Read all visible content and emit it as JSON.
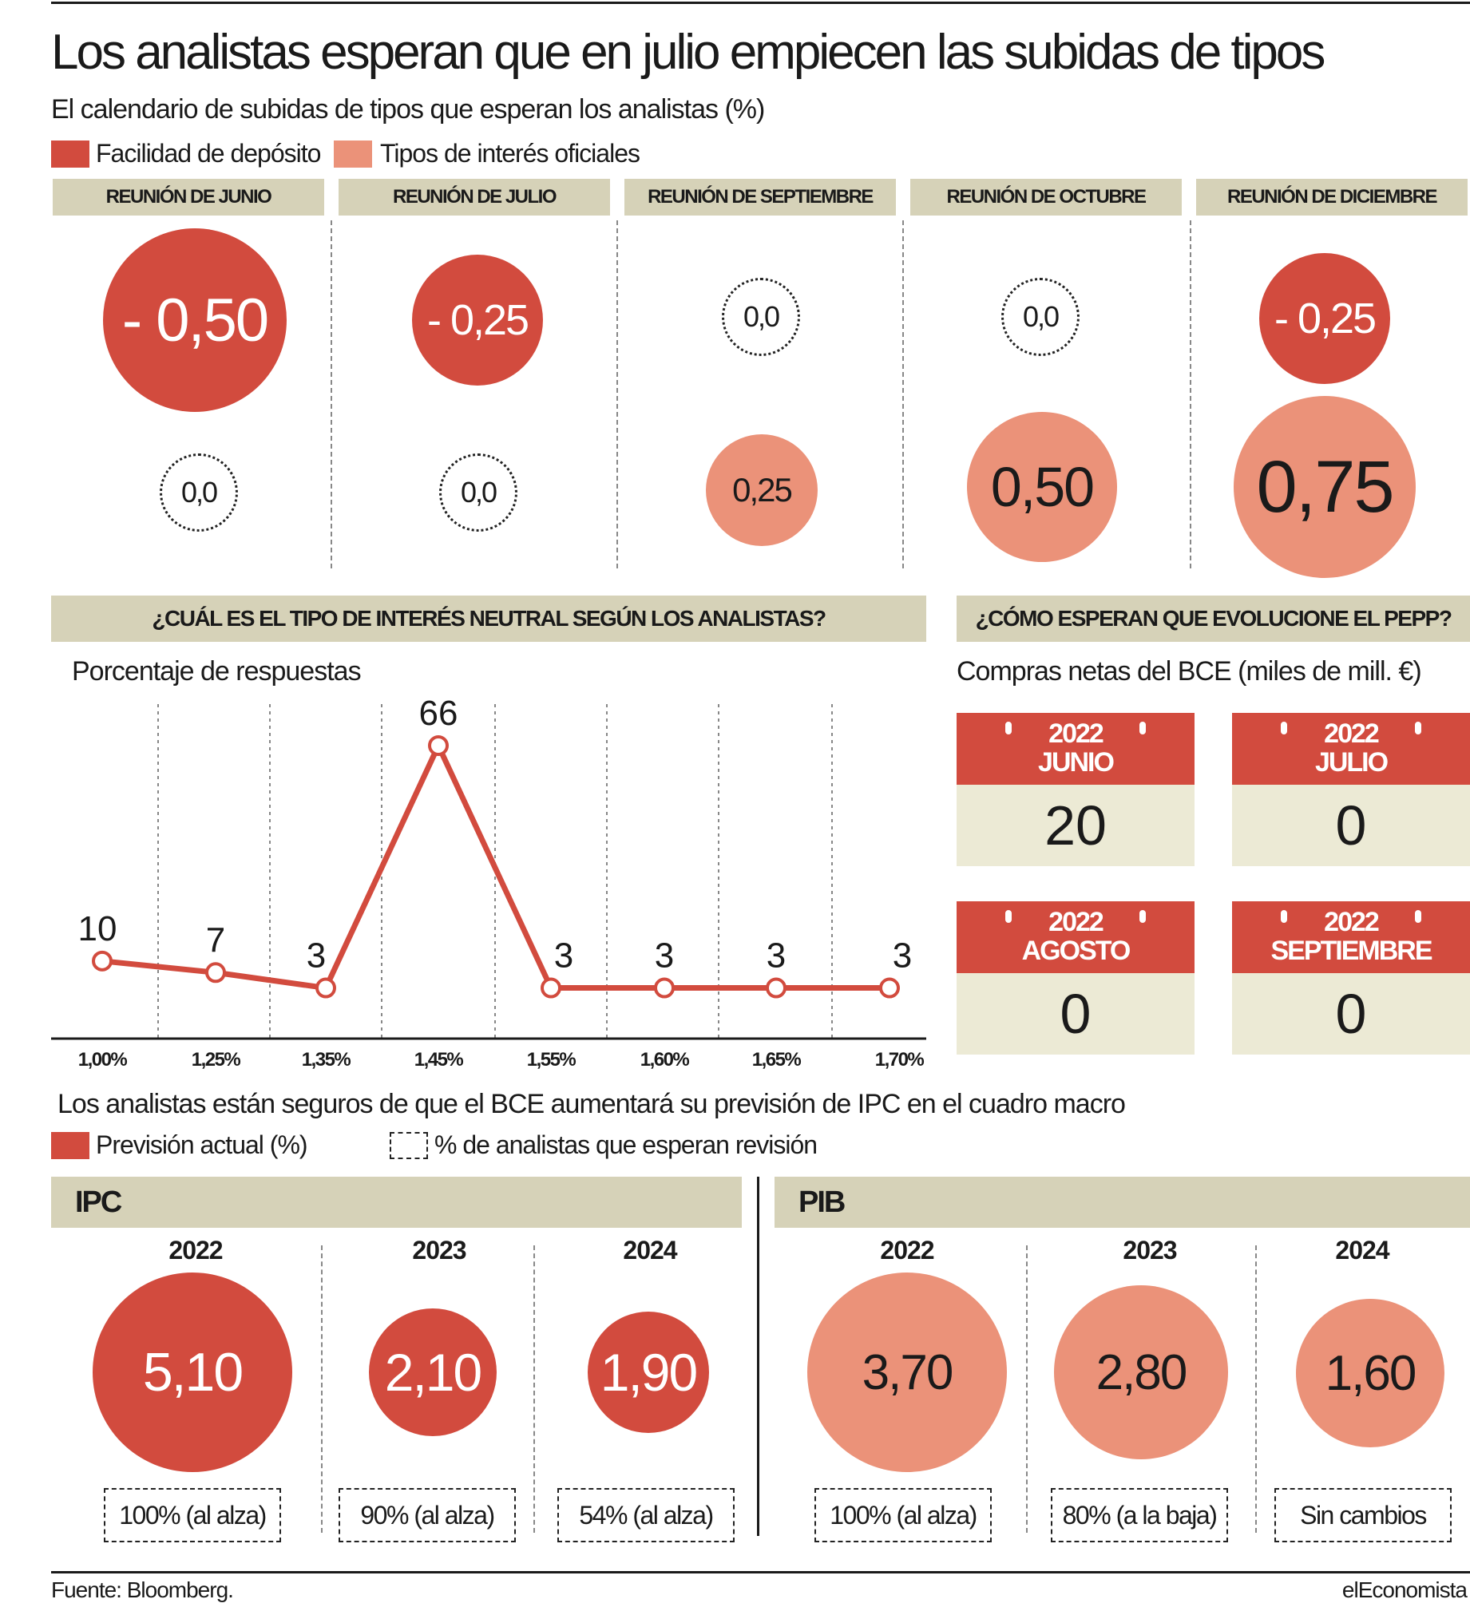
{
  "title": "Los analistas esperan que en julio empiecen las subidas de tipos",
  "calendar": {
    "subtitle": "El calendario de subidas de tipos que esperan los analistas (%)",
    "legend": [
      {
        "label": "Facilidad de depósito",
        "color": "#d24b3e"
      },
      {
        "label": "Tipos de interés oficiales",
        "color": "#eb9279"
      }
    ],
    "meetings": [
      {
        "label": "REUNIÓN DE JUNIO",
        "deposit": "- 0,50",
        "official": "0,0"
      },
      {
        "label": "REUNIÓN DE JULIO",
        "deposit": "- 0,25",
        "official": "0,0"
      },
      {
        "label": "REUNIÓN DE SEPTIEMBRE",
        "deposit": "0,0",
        "official": "0,25"
      },
      {
        "label": "REUNIÓN DE OCTUBRE",
        "deposit": "0,0",
        "official": "0,50"
      },
      {
        "label": "REUNIÓN DE DICIEMBRE",
        "deposit": "- 0,25",
        "official": "0,75"
      }
    ]
  },
  "neutral": {
    "header": "¿CUÁL ES EL TIPO DE INTERÉS NEUTRAL SEGÚN LOS ANALISTAS?",
    "subtitle": "Porcentaje de respuestas"
  },
  "chart_data": {
    "type": "line",
    "categories": [
      "1,00%",
      "1,25%",
      "1,35%",
      "1,45%",
      "1,55%",
      "1,60%",
      "1,65%",
      "1,70%"
    ],
    "values": [
      10,
      7,
      3,
      66,
      3,
      3,
      3,
      3
    ],
    "labels": [
      "10",
      "7",
      "3",
      "66",
      "3",
      "3",
      "3",
      "3"
    ],
    "ylim": [
      0,
      70
    ],
    "grid": true,
    "color": "#d24b3e"
  },
  "pepp": {
    "header": "¿CÓMO ESPERAN QUE EVOLUCIONE EL PEPP?",
    "subtitle": "Compras netas del BCE (miles de mill. €)",
    "months": [
      {
        "year": "2022",
        "month": "JUNIO",
        "value": "20"
      },
      {
        "year": "2022",
        "month": "JULIO",
        "value": "0"
      },
      {
        "year": "2022",
        "month": "AGOSTO",
        "value": "0"
      },
      {
        "year": "2022",
        "month": "SEPTIEMBRE",
        "value": "0"
      }
    ]
  },
  "macro": {
    "subtitle": "Los analistas están seguros de que el BCE aumentará su previsión de IPC en el cuadro macro",
    "legend": [
      {
        "label": "Previsión actual (%)"
      },
      {
        "label": "% de analistas que esperan revisión"
      }
    ],
    "ipc": {
      "header": "IPC",
      "items": [
        {
          "year": "2022",
          "value": "5,10",
          "revision": "100% (al alza)"
        },
        {
          "year": "2023",
          "value": "2,10",
          "revision": "90% (al alza)"
        },
        {
          "year": "2024",
          "value": "1,90",
          "revision": "54% (al alza)"
        }
      ]
    },
    "pib": {
      "header": "PIB",
      "items": [
        {
          "year": "2022",
          "value": "3,70",
          "revision": "100% (al alza)"
        },
        {
          "year": "2023",
          "value": "2,80",
          "revision": "80% (a la baja)"
        },
        {
          "year": "2024",
          "value": "1,60",
          "revision": "Sin cambios"
        }
      ]
    }
  },
  "footer": {
    "source": "Fuente: Bloomberg.",
    "brand": "elEconomista"
  }
}
